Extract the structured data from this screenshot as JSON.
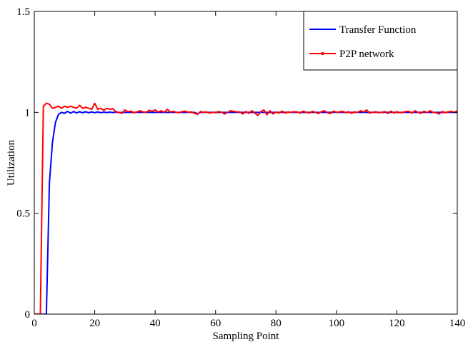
{
  "chart_data": {
    "type": "line",
    "title": "",
    "xlabel": "Sampling Point",
    "ylabel": "Utilization",
    "xlim": [
      0,
      140
    ],
    "ylim": [
      0,
      1.5
    ],
    "x_ticks": [
      0,
      20,
      40,
      60,
      80,
      100,
      120,
      140
    ],
    "y_ticks": [
      0,
      0.5,
      1,
      1.5
    ],
    "x_tick_labels": [
      "0",
      "20",
      "40",
      "60",
      "80",
      "100",
      "120",
      "140"
    ],
    "y_tick_labels": [
      "0",
      "0.5",
      "1",
      "1.5"
    ],
    "grid": false,
    "legend_position": "top-right",
    "series": [
      {
        "name": "Transfer Function",
        "color": "#0000ff",
        "marker": "none",
        "x": [
          0,
          1,
          2,
          3,
          4,
          5,
          6,
          7,
          8,
          9,
          10,
          11,
          12,
          13,
          14,
          15,
          16,
          17,
          18,
          19,
          20,
          21,
          22,
          23,
          24,
          25,
          26,
          27,
          28,
          29,
          30,
          31,
          32,
          33,
          34,
          35,
          36,
          37,
          38,
          39,
          40,
          41,
          42,
          43,
          44,
          45,
          46,
          47,
          48,
          49,
          50,
          51,
          52,
          53,
          54,
          55,
          56,
          57,
          58,
          59,
          60,
          61,
          62,
          63,
          64,
          65,
          66,
          67,
          68,
          69,
          70,
          71,
          72,
          73,
          74,
          75,
          76,
          77,
          78,
          79,
          80,
          81,
          82,
          83,
          84,
          85,
          86,
          87,
          88,
          89,
          90,
          91,
          92,
          93,
          94,
          95,
          96,
          97,
          98,
          99,
          100,
          101,
          102,
          103,
          104,
          105,
          106,
          107,
          108,
          109,
          110,
          111,
          112,
          113,
          114,
          115,
          116,
          117,
          118,
          119,
          120,
          121,
          122,
          123,
          124,
          125,
          126,
          127,
          128,
          129,
          130,
          131,
          132,
          133,
          134,
          135,
          136,
          137,
          138,
          139,
          140
        ],
        "y": [
          0,
          0,
          0,
          0,
          0,
          0.65,
          0.85,
          0.95,
          0.99,
          1.0,
          0.995,
          1.005,
          0.996,
          1.004,
          0.997,
          1.003,
          0.998,
          1.003,
          0.998,
          1.002,
          0.998,
          1.002,
          0.998,
          1.001,
          0.999,
          1.001,
          0.999,
          1.001,
          0.999,
          1.0,
          1.0,
          1.0,
          1.0,
          1.0,
          1.0,
          1.0,
          1.0,
          1.0,
          1.0,
          1.0,
          1.0,
          1.0,
          1.0,
          1.0,
          1.0,
          1.0,
          1.0,
          1.0,
          1.0,
          1.0,
          1.0,
          1.0,
          1.0,
          1.0,
          0.993,
          1.0,
          1.0,
          1.0,
          1.0,
          1.0,
          1.0,
          1.0,
          1.0,
          1.0,
          1.0,
          1.0,
          1.0,
          1.0,
          1.0,
          1.0,
          1.0,
          1.0,
          1.0,
          1.0,
          1.0,
          1.0,
          1.0,
          1.0,
          1.0,
          1.0,
          1.0,
          1.0,
          1.0,
          1.0,
          1.0,
          1.0,
          1.0,
          1.0,
          1.0,
          1.0,
          1.0,
          1.0,
          1.0,
          1.0,
          1.0,
          1.0,
          1.0,
          1.0,
          1.0,
          1.0,
          1.0,
          1.0,
          1.0,
          1.0,
          1.0,
          1.0,
          1.0,
          1.0,
          1.0,
          1.0,
          1.0,
          1.0,
          1.0,
          1.0,
          1.0,
          1.0,
          1.0,
          1.0,
          1.0,
          1.0,
          1.0,
          1.0,
          1.0,
          1.0,
          1.0,
          1.0,
          1.0,
          1.0,
          1.0,
          1.0,
          1.0,
          1.0,
          1.0,
          1.0,
          1.0,
          1.0,
          1.0,
          1.0,
          1.0,
          1.0,
          1.0
        ]
      },
      {
        "name": "P2P network",
        "color": "#ff0000",
        "marker": "dot",
        "x": [
          0,
          1,
          2,
          3,
          4,
          5,
          6,
          7,
          8,
          9,
          10,
          11,
          12,
          13,
          14,
          15,
          16,
          17,
          18,
          19,
          20,
          21,
          22,
          23,
          24,
          25,
          26,
          27,
          28,
          29,
          30,
          31,
          32,
          33,
          34,
          35,
          36,
          37,
          38,
          39,
          40,
          41,
          42,
          43,
          44,
          45,
          46,
          47,
          48,
          49,
          50,
          51,
          52,
          53,
          54,
          55,
          56,
          57,
          58,
          59,
          60,
          61,
          62,
          63,
          64,
          65,
          66,
          67,
          68,
          69,
          70,
          71,
          72,
          73,
          74,
          75,
          76,
          77,
          78,
          79,
          80,
          81,
          82,
          83,
          84,
          85,
          86,
          87,
          88,
          89,
          90,
          91,
          92,
          93,
          94,
          95,
          96,
          97,
          98,
          99,
          100,
          101,
          102,
          103,
          104,
          105,
          106,
          107,
          108,
          109,
          110,
          111,
          112,
          113,
          114,
          115,
          116,
          117,
          118,
          119,
          120,
          121,
          122,
          123,
          124,
          125,
          126,
          127,
          128,
          129,
          130,
          131,
          132,
          133,
          134,
          135,
          136,
          137,
          138,
          139,
          140
        ],
        "y": [
          0,
          0,
          0,
          1.03,
          1.045,
          1.04,
          1.02,
          1.025,
          1.03,
          1.02,
          1.03,
          1.025,
          1.03,
          1.025,
          1.02,
          1.035,
          1.02,
          1.025,
          1.02,
          1.015,
          1.045,
          1.015,
          1.02,
          1.01,
          1.02,
          1.015,
          1.018,
          1.003,
          1.0,
          0.995,
          1.012,
          1.003,
          1.006,
          0.998,
          1.002,
          1.008,
          1.002,
          1.0,
          1.01,
          1.005,
          1.012,
          1.002,
          1.008,
          1.0,
          1.015,
          1.002,
          1.005,
          1.0,
          0.998,
          1.004,
          1.006,
          1.0,
          1.002,
          0.996,
          0.99,
          1.004,
          1.0,
          1.002,
          0.996,
          1.0,
          0.998,
          1.004,
          1.0,
          0.992,
          1.0,
          1.008,
          1.005,
          1.002,
          1.002,
          0.992,
          1.004,
          0.995,
          1.008,
          0.996,
          0.985,
          1.004,
          1.012,
          0.988,
          1.008,
          0.992,
          1.002,
          0.996,
          1.006,
          0.996,
          1.002,
          1.0,
          1.003,
          1.002,
          0.996,
          1.006,
          1.0,
          0.996,
          1.005,
          1.0,
          0.994,
          1.003,
          1.008,
          0.998,
          0.994,
          1.006,
          1.0,
          1.002,
          1.005,
          0.998,
          1.003,
          0.995,
          1.002,
          1.0,
          1.008,
          1.002,
          1.012,
          0.996,
          1.0,
          1.003,
          0.998,
          1.0,
          1.004,
          0.994,
          1.006,
          0.996,
          1.003,
          0.998,
          1.0,
          1.004,
          1.005,
          0.996,
          1.008,
          1.0,
          0.995,
          1.006,
          0.998,
          1.008,
          1.0,
          0.998,
          0.992,
          1.004,
          0.998,
          1.002,
          1.005,
          1.0,
          1.008
        ]
      }
    ]
  }
}
